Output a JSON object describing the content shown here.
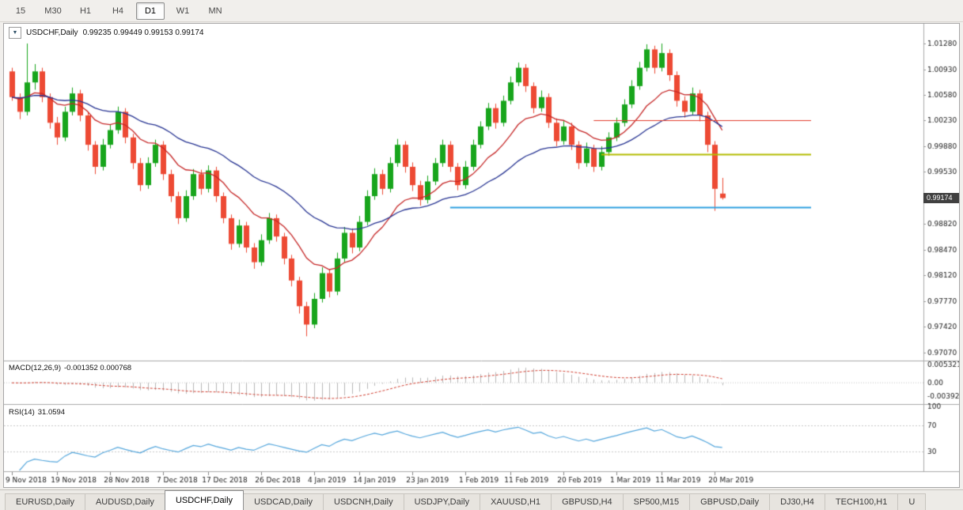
{
  "toolbar": {
    "timeframes": [
      {
        "label": "15",
        "active": false
      },
      {
        "label": "M30",
        "active": false
      },
      {
        "label": "H1",
        "active": false
      },
      {
        "label": "H4",
        "active": false
      },
      {
        "label": "D1",
        "active": true
      },
      {
        "label": "W1",
        "active": false
      },
      {
        "label": "MN",
        "active": false
      }
    ]
  },
  "chart_data": {
    "type": "candlestick",
    "symbol": "USDCHF",
    "timeframe": "Daily",
    "header": {
      "symbol_text": "USDCHF,Daily",
      "ohlc_text": "0.99235 0.99449 0.99153 0.99174"
    },
    "price_badge": "0.99174",
    "price_axis_labels": [
      "1.01280",
      "1.00930",
      "1.00580",
      "1.00230",
      "0.99880",
      "0.99530",
      "0.98820",
      "0.98470",
      "0.98120",
      "0.97770",
      "0.97420",
      "0.97070"
    ],
    "date_labels": [
      {
        "bar": 0,
        "text": "9 Nov 2018"
      },
      {
        "bar": 6,
        "text": "19 Nov 2018"
      },
      {
        "bar": 13,
        "text": "28 Nov 2018"
      },
      {
        "bar": 20,
        "text": "7 Dec 2018"
      },
      {
        "bar": 26,
        "text": "17 Dec 2018"
      },
      {
        "bar": 33,
        "text": "26 Dec 2018"
      },
      {
        "bar": 40,
        "text": "4 Jan 2019"
      },
      {
        "bar": 46,
        "text": "14 Jan 2019"
      },
      {
        "bar": 53,
        "text": "23 Jan 2019"
      },
      {
        "bar": 60,
        "text": "1 Feb 2019"
      },
      {
        "bar": 66,
        "text": "11 Feb 2019"
      },
      {
        "bar": 73,
        "text": "20 Feb 2019"
      },
      {
        "bar": 80,
        "text": "1 Mar 2019"
      },
      {
        "bar": 86,
        "text": "11 Mar 2019"
      },
      {
        "bar": 93,
        "text": "20 Mar 2019"
      }
    ],
    "colors": {
      "up": "#18a51c",
      "down": "#ed4a34",
      "background": "#ffffff",
      "axis_text": "#222222"
    },
    "moving_averages": [
      {
        "period": 12,
        "color": "#c62828"
      },
      {
        "period": 30,
        "color": "#283593"
      }
    ],
    "hlines": [
      {
        "price": 1.0023,
        "from_bar": 77,
        "color": "#e23b2c",
        "width": 1
      },
      {
        "price": 0.9977,
        "from_bar": 78,
        "color": "#b3bc00",
        "width": 2
      },
      {
        "price": 0.9905,
        "from_bar": 58,
        "color": "#2da0e0",
        "width": 2
      }
    ],
    "candles": [
      [
        1.009,
        1.0095,
        1.005,
        1.0055
      ],
      [
        1.0055,
        1.006,
        1.0025,
        1.0035
      ],
      [
        1.0035,
        1.0128,
        1.003,
        1.0075
      ],
      [
        1.0075,
        1.01,
        1.0065,
        1.009
      ],
      [
        1.009,
        1.0095,
        1.0048,
        1.0055
      ],
      [
        1.0055,
        1.006,
        1.0012,
        1.002
      ],
      [
        1.002,
        1.0028,
        0.999,
        1.0
      ],
      [
        1.0,
        1.0042,
        0.9995,
        1.0035
      ],
      [
        1.0035,
        1.0068,
        1.003,
        1.006
      ],
      [
        1.006,
        1.0065,
        1.0022,
        1.003
      ],
      [
        1.003,
        1.0035,
        0.9982,
        0.999
      ],
      [
        0.999,
        0.9995,
        0.995,
        0.996
      ],
      [
        0.996,
        0.9998,
        0.9955,
        0.999
      ],
      [
        0.999,
        1.0018,
        0.9985,
        1.001
      ],
      [
        1.001,
        1.0042,
        1.0005,
        1.0035
      ],
      [
        1.0035,
        1.004,
        0.9992,
        1.0
      ],
      [
        1.0,
        1.0005,
        0.9957,
        0.9965
      ],
      [
        0.9965,
        0.9972,
        0.9927,
        0.9935
      ],
      [
        0.9935,
        0.9973,
        0.993,
        0.9965
      ],
      [
        0.9965,
        0.9997,
        0.996,
        0.999
      ],
      [
        0.999,
        0.9995,
        0.9942,
        0.995
      ],
      [
        0.995,
        0.9956,
        0.9912,
        0.992
      ],
      [
        0.992,
        0.9926,
        0.9882,
        0.989
      ],
      [
        0.989,
        0.9928,
        0.9885,
        0.992
      ],
      [
        0.992,
        0.9957,
        0.9915,
        0.995
      ],
      [
        0.995,
        0.9956,
        0.9922,
        0.993
      ],
      [
        0.993,
        0.9962,
        0.9925,
        0.9955
      ],
      [
        0.9955,
        0.996,
        0.9912,
        0.992
      ],
      [
        0.992,
        0.9925,
        0.9883,
        0.989
      ],
      [
        0.989,
        0.9895,
        0.9847,
        0.9855
      ],
      [
        0.9855,
        0.9888,
        0.985,
        0.988
      ],
      [
        0.988,
        0.9885,
        0.9843,
        0.985
      ],
      [
        0.985,
        0.9856,
        0.9821,
        0.983
      ],
      [
        0.983,
        0.9868,
        0.9825,
        0.986
      ],
      [
        0.986,
        0.9897,
        0.9855,
        0.989
      ],
      [
        0.989,
        0.9895,
        0.9858,
        0.9865
      ],
      [
        0.9865,
        0.987,
        0.9827,
        0.9835
      ],
      [
        0.9835,
        0.984,
        0.9797,
        0.9805
      ],
      [
        0.9805,
        0.981,
        0.976,
        0.977
      ],
      [
        0.977,
        0.9776,
        0.9729,
        0.9745
      ],
      [
        0.9745,
        0.9788,
        0.974,
        0.978
      ],
      [
        0.978,
        0.9823,
        0.9775,
        0.9815
      ],
      [
        0.9815,
        0.982,
        0.9782,
        0.979
      ],
      [
        0.979,
        0.9843,
        0.9785,
        0.9835
      ],
      [
        0.9835,
        0.9878,
        0.983,
        0.987
      ],
      [
        0.987,
        0.9876,
        0.9842,
        0.985
      ],
      [
        0.985,
        0.9893,
        0.9845,
        0.9885
      ],
      [
        0.9885,
        0.9928,
        0.988,
        0.992
      ],
      [
        0.992,
        0.9958,
        0.9915,
        0.995
      ],
      [
        0.995,
        0.9956,
        0.9922,
        0.993
      ],
      [
        0.993,
        0.9973,
        0.9925,
        0.9965
      ],
      [
        0.9965,
        0.9998,
        0.996,
        0.999
      ],
      [
        0.999,
        0.9995,
        0.9952,
        0.996
      ],
      [
        0.996,
        0.9966,
        0.9927,
        0.9935
      ],
      [
        0.9935,
        0.9941,
        0.9907,
        0.9915
      ],
      [
        0.9915,
        0.9948,
        0.991,
        0.994
      ],
      [
        0.994,
        0.9972,
        0.9935,
        0.9965
      ],
      [
        0.9965,
        0.9997,
        0.996,
        0.999
      ],
      [
        0.999,
        0.9995,
        0.9953,
        0.996
      ],
      [
        0.996,
        0.9965,
        0.9928,
        0.9935
      ],
      [
        0.9935,
        0.9968,
        0.993,
        0.996
      ],
      [
        0.996,
        0.9997,
        0.9955,
        0.999
      ],
      [
        0.999,
        1.0022,
        0.9985,
        1.0015
      ],
      [
        1.0015,
        1.0047,
        1.001,
        1.004
      ],
      [
        1.004,
        1.0046,
        1.0012,
        1.002
      ],
      [
        1.002,
        1.0057,
        1.0015,
        1.005
      ],
      [
        1.005,
        1.0083,
        1.0045,
        1.0075
      ],
      [
        1.0075,
        1.0102,
        1.007,
        1.0095
      ],
      [
        1.0095,
        1.01,
        1.0062,
        1.007
      ],
      [
        1.007,
        1.0075,
        1.0033,
        1.004
      ],
      [
        1.004,
        1.0064,
        1.0035,
        1.0055
      ],
      [
        1.0055,
        1.006,
        1.0013,
        1.002
      ],
      [
        1.002,
        1.0026,
        0.9988,
        0.9995
      ],
      [
        0.9995,
        1.0023,
        0.999,
        1.0015
      ],
      [
        1.0015,
        1.002,
        0.9983,
        0.999
      ],
      [
        0.999,
        0.9995,
        0.9957,
        0.9965
      ],
      [
        0.9965,
        0.9993,
        0.996,
        0.9985
      ],
      [
        0.9985,
        0.999,
        0.9953,
        0.996
      ],
      [
        0.996,
        0.9988,
        0.9955,
        0.998
      ],
      [
        0.998,
        1.0007,
        0.9975,
        1.0
      ],
      [
        1.0,
        1.0027,
        0.9995,
        1.002
      ],
      [
        1.002,
        1.0052,
        1.0015,
        1.0045
      ],
      [
        1.0045,
        1.0078,
        1.004,
        1.007
      ],
      [
        1.007,
        1.0103,
        1.0065,
        1.0095
      ],
      [
        1.0095,
        1.0127,
        1.009,
        1.012
      ],
      [
        1.012,
        1.0125,
        1.0087,
        1.0095
      ],
      [
        1.0095,
        1.0128,
        1.009,
        1.0115
      ],
      [
        1.0115,
        1.012,
        1.0077,
        1.0085
      ],
      [
        1.0085,
        1.009,
        1.0042,
        1.005
      ],
      [
        1.005,
        1.0056,
        1.0027,
        1.0035
      ],
      [
        1.0035,
        1.0068,
        1.003,
        1.006
      ],
      [
        1.006,
        1.0065,
        1.0022,
        1.003
      ],
      [
        1.003,
        1.0035,
        0.998,
        0.999
      ],
      [
        0.999,
        0.9995,
        0.99,
        0.993
      ],
      [
        0.99235,
        0.99449,
        0.99153,
        0.99174
      ]
    ],
    "indicators": {
      "macd": {
        "label": "MACD(12,26,9)",
        "values": "-0.001352 0.000768",
        "fast": 12,
        "slow": 26,
        "signal": 9,
        "scale_labels": [
          "0.005321",
          "0.00",
          "-0.003922"
        ],
        "hist_color": "#b8b8b8",
        "signal_color": "#d23f31"
      },
      "rsi": {
        "label": "RSI(14)",
        "value": "31.0594",
        "period": 14,
        "levels": [
          70,
          30
        ],
        "scale_labels": [
          "100",
          "70",
          "30"
        ],
        "line_color": "#55a7dd"
      }
    }
  },
  "tabs": [
    {
      "label": "EURUSD,Daily",
      "active": false
    },
    {
      "label": "AUDUSD,Daily",
      "active": false
    },
    {
      "label": "USDCHF,Daily",
      "active": true
    },
    {
      "label": "USDCAD,Daily",
      "active": false
    },
    {
      "label": "USDCNH,Daily",
      "active": false
    },
    {
      "label": "USDJPY,Daily",
      "active": false
    },
    {
      "label": "XAUUSD,H1",
      "active": false
    },
    {
      "label": "GBPUSD,H4",
      "active": false
    },
    {
      "label": "SP500,M15",
      "active": false
    },
    {
      "label": "GBPUSD,Daily",
      "active": false
    },
    {
      "label": "DJ30,H4",
      "active": false
    },
    {
      "label": "TECH100,H1",
      "active": false
    },
    {
      "label": "U",
      "active": false
    }
  ]
}
